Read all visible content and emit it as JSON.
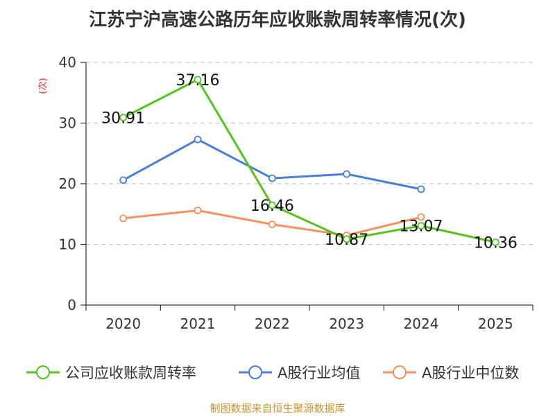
{
  "chart_data": {
    "type": "line",
    "title": "江苏宁沪高速公路历年应收账款周转率情况(次)",
    "ylabel": "(次)",
    "xlabel": "",
    "categories": [
      "2020",
      "2021",
      "2022",
      "2023",
      "2024",
      "2025"
    ],
    "ylim": [
      0,
      40
    ],
    "yticks": [
      0,
      10,
      20,
      30,
      40
    ],
    "grid": true,
    "legend_position": "bottom",
    "series": [
      {
        "name": "公司应收账款周转率",
        "color": "#52c41a",
        "values": [
          30.91,
          37.16,
          16.46,
          10.87,
          13.07,
          10.36
        ],
        "labels": [
          "30.91",
          "37.16",
          "16.46",
          "10.87",
          "13.07",
          "10.36"
        ]
      },
      {
        "name": "A股行业均值",
        "color": "#4a7fd6",
        "values": [
          20.6,
          27.3,
          20.9,
          21.6,
          19.1,
          null
        ]
      },
      {
        "name": "A股行业中位数",
        "color": "#f5915c",
        "values": [
          14.3,
          15.6,
          13.3,
          11.5,
          14.5,
          null
        ]
      }
    ]
  },
  "footer": {
    "source": "制图数据来自恒生聚源数据库"
  }
}
